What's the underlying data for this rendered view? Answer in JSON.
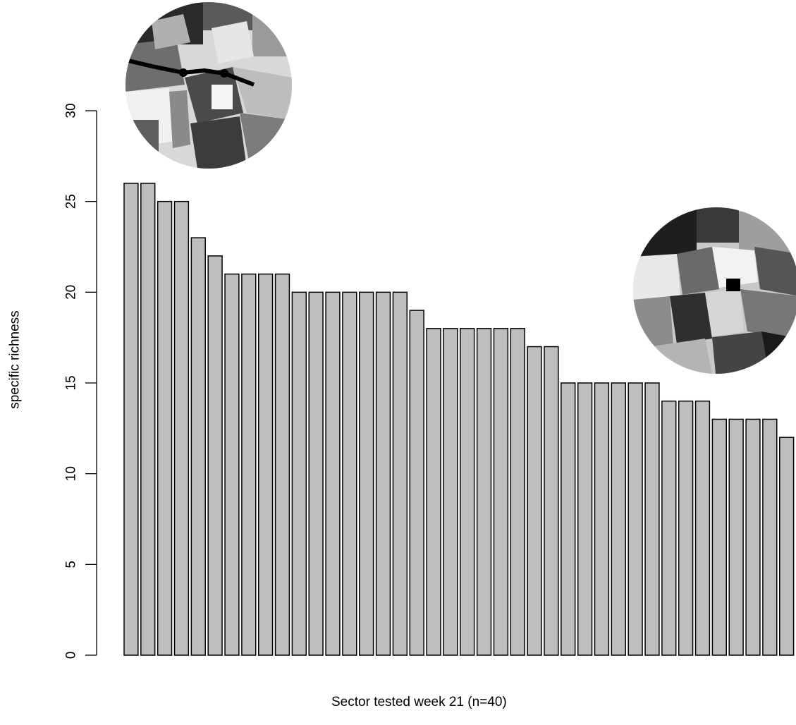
{
  "chart_data": {
    "type": "bar",
    "xlabel": "Sector tested week 21 (n=40)",
    "ylabel": "specific richness",
    "ylim": [
      0,
      30
    ],
    "yticks": [
      0,
      5,
      10,
      15,
      20,
      25,
      30
    ],
    "values": [
      26,
      26,
      25,
      25,
      23,
      22,
      21,
      21,
      21,
      21,
      20,
      20,
      20,
      20,
      20,
      20,
      20,
      19,
      18,
      18,
      18,
      18,
      18,
      18,
      17,
      17,
      15,
      15,
      15,
      15,
      15,
      15,
      14,
      14,
      14,
      13,
      13,
      13,
      13,
      12
    ],
    "colors": {
      "bar_fill": "#bebebe",
      "bar_stroke": "#000000"
    }
  }
}
